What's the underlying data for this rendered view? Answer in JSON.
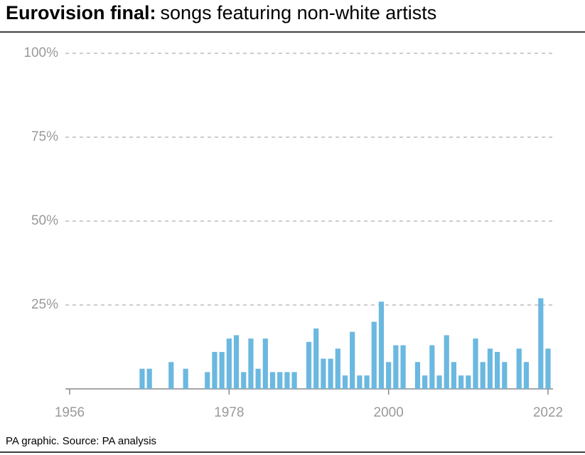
{
  "chart_data": {
    "type": "bar",
    "title_bold": "Eurovision final:",
    "title": "songs featuring non-white artists",
    "source": "PA graphic. Source: PA analysis",
    "color": "#6bb8e0",
    "x": [
      1966,
      1967,
      1970,
      1972,
      1975,
      1976,
      1977,
      1978,
      1979,
      1980,
      1981,
      1982,
      1983,
      1984,
      1985,
      1986,
      1987,
      1989,
      1990,
      1991,
      1992,
      1993,
      1994,
      1995,
      1996,
      1997,
      1998,
      1999,
      2000,
      2001,
      2002,
      2004,
      2005,
      2006,
      2007,
      2008,
      2009,
      2010,
      2011,
      2012,
      2013,
      2014,
      2015,
      2016,
      2018,
      2019,
      2021,
      2022
    ],
    "values": [
      6,
      6,
      8,
      6,
      5,
      11,
      11,
      15,
      16,
      5,
      15,
      6,
      15,
      5,
      5,
      5,
      5,
      14,
      18,
      9,
      9,
      12,
      4,
      17,
      4,
      4,
      20,
      26,
      8,
      13,
      13,
      8,
      4,
      13,
      4,
      16,
      8,
      4,
      4,
      15,
      8,
      12,
      11,
      8,
      12,
      8,
      27,
      12
    ],
    "xlim": [
      1956,
      2022
    ],
    "xticks": [
      1956,
      1978,
      2000,
      2022
    ],
    "ylim": [
      0,
      100
    ],
    "yticks": [
      {
        "value": 25,
        "label": "25%"
      },
      {
        "value": 50,
        "label": "50%"
      },
      {
        "value": 75,
        "label": "75%"
      },
      {
        "value": 100,
        "label": "100%"
      }
    ],
    "grid": true
  }
}
